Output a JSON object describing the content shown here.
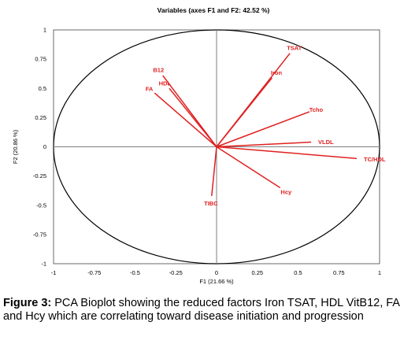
{
  "chart_data": {
    "type": "biplot",
    "title": "Variables (axes F1 and F2: 42.52 %)",
    "xlabel": "F1 (21.66 %)",
    "ylabel": "F2 (20.86 %)",
    "xlim": [
      -1,
      1
    ],
    "ylim": [
      -1,
      1
    ],
    "x_ticks": [
      "-1",
      "-0.75",
      "-0.5",
      "-0.25",
      "0",
      "0.25",
      "0.5",
      "0.75",
      "1"
    ],
    "y_ticks": [
      "1",
      "0.75",
      "0.5",
      "0.25",
      "0",
      "-0.25",
      "-0.5",
      "-0.75",
      "-1"
    ],
    "correlation_circle": true,
    "vector_color": "#e02020",
    "vectors": [
      {
        "label": "TSAT",
        "x": 0.45,
        "y": 0.8
      },
      {
        "label": "Iron",
        "x": 0.34,
        "y": 0.59
      },
      {
        "label": "B12",
        "x": -0.33,
        "y": 0.61
      },
      {
        "label": "HDL",
        "x": -0.29,
        "y": 0.5
      },
      {
        "label": "FA",
        "x": -0.38,
        "y": 0.46
      },
      {
        "label": "Tcho",
        "x": 0.57,
        "y": 0.3
      },
      {
        "label": "VLDL",
        "x": 0.58,
        "y": 0.04
      },
      {
        "label": "TC/HDL",
        "x": 0.86,
        "y": -0.1
      },
      {
        "label": "Hcy",
        "x": 0.39,
        "y": -0.35
      },
      {
        "label": "TIBC",
        "x": -0.03,
        "y": -0.42
      }
    ]
  },
  "caption": {
    "label": "Figure 3:",
    "text": " PCA Bioplot showing the reduced factors Iron TSAT, HDL VitB12, FA and Hcy which are correlating toward disease initiation and progression"
  }
}
